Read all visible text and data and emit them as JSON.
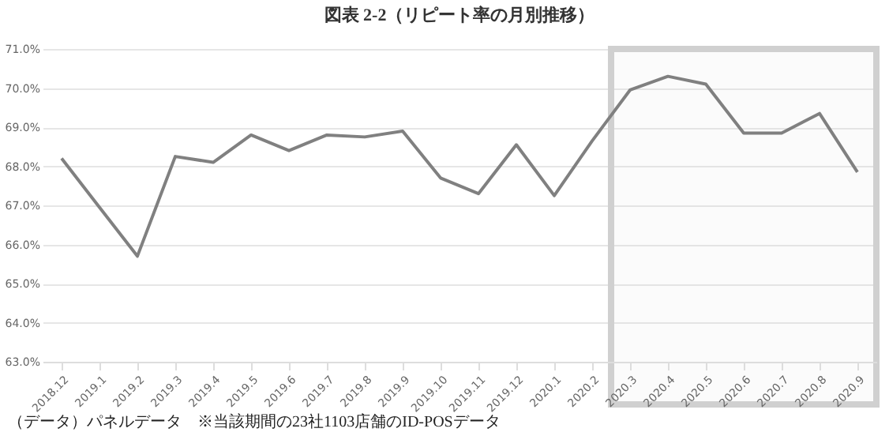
{
  "chart_data": {
    "type": "line",
    "title": "図表 2-2（リピート率の月別推移）",
    "categories": [
      "2018.12",
      "2019.1",
      "2019.2",
      "2019.3",
      "2019.4",
      "2019.5",
      "2019.6",
      "2019.7",
      "2019.8",
      "2019.9",
      "2019.10",
      "2019.11",
      "2019.12",
      "2020.1",
      "2020.2",
      "2020.3",
      "2020.4",
      "2020.5",
      "2020.6",
      "2020.7",
      "2020.8",
      "2020.9"
    ],
    "series": [
      {
        "color": "#808080",
        "values": [
          68.2,
          66.95,
          65.7,
          68.25,
          68.1,
          68.8,
          68.4,
          68.8,
          68.75,
          68.9,
          67.7,
          67.3,
          68.55,
          67.25,
          68.65,
          69.95,
          70.3,
          70.1,
          68.85,
          68.85,
          69.35,
          67.85
        ]
      }
    ],
    "ylim": [
      63,
      71
    ],
    "yticks": [
      {
        "value": 63,
        "label": "63.0%"
      },
      {
        "value": 64,
        "label": "64.0%"
      },
      {
        "value": 65,
        "label": "65.0%"
      },
      {
        "value": 66,
        "label": "66.0%"
      },
      {
        "value": 67,
        "label": "67.0%"
      },
      {
        "value": 68,
        "label": "68.0%"
      },
      {
        "value": 69,
        "label": "69.0%"
      },
      {
        "value": 70,
        "label": "70.0%"
      },
      {
        "value": 71,
        "label": "71.0%"
      }
    ],
    "grid": "y",
    "marker": "none",
    "line_style": "solid",
    "bands": [
      {
        "axis": "x",
        "from": "2020.3",
        "to": "2020.9",
        "color": "#d0d0d0"
      }
    ],
    "annotations": [
      "（データ）パネルデータ　※当該期間の23社1103店舗のID-POSデータ"
    ]
  }
}
